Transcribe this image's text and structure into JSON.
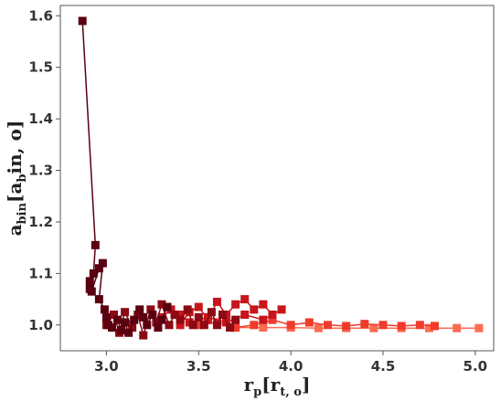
{
  "chart_data": {
    "type": "scatter",
    "title": "",
    "xlabel": {
      "main": "r",
      "sub": "p",
      "bracket_main": "r",
      "bracket_sub": "t, o"
    },
    "ylabel": {
      "main": "a",
      "sub": "bin",
      "bracket_main": "a",
      "bracket_sub": "b",
      "bracket_rest": "in, o"
    },
    "xlim": [
      2.75,
      5.1
    ],
    "ylim": [
      0.95,
      1.62
    ],
    "xticks": [
      3.0,
      3.5,
      4.0,
      4.5,
      5.0
    ],
    "xtick_labels": [
      "3.0",
      "3.5",
      "4.0",
      "4.5",
      "5.0"
    ],
    "yticks": [
      1.0,
      1.1,
      1.2,
      1.3,
      1.4,
      1.5,
      1.6
    ],
    "ytick_labels": [
      "1.0",
      "1.1",
      "1.2",
      "1.3",
      "1.4",
      "1.5",
      "1.6"
    ],
    "grid": false,
    "legend": false,
    "marker": "square",
    "color_scale": [
      "#5a0010",
      "#8b0a14",
      "#c8161c",
      "#ef3b2c",
      "#fc6c50"
    ],
    "series": [
      {
        "points": [
          [
            2.87,
            1.59
          ],
          [
            2.94,
            1.155
          ],
          [
            2.93,
            1.1
          ],
          [
            2.91,
            1.085
          ],
          [
            2.91,
            1.07
          ],
          [
            2.92,
            1.065
          ],
          [
            2.96,
            1.11
          ],
          [
            2.98,
            1.12
          ],
          [
            2.96,
            1.05
          ],
          [
            2.99,
            1.03
          ],
          [
            3.0,
            1.015
          ],
          [
            3.01,
            1.0
          ],
          [
            3.03,
            0.995
          ],
          [
            3.06,
            1.01
          ],
          [
            3.08,
            0.99
          ],
          [
            3.1,
            1.005
          ],
          [
            3.12,
            0.985
          ],
          [
            3.15,
            1.01
          ],
          [
            3.18,
            1.03
          ],
          [
            3.2,
            1.015
          ],
          [
            3.22,
            1.0
          ],
          [
            3.25,
            1.02
          ],
          [
            3.28,
            0.995
          ],
          [
            3.3,
            1.01
          ],
          [
            3.33,
            1.035
          ]
        ]
      },
      {
        "points": [
          [
            3.0,
            1.0
          ],
          [
            3.04,
            1.02
          ],
          [
            3.07,
            0.985
          ],
          [
            3.1,
            1.025
          ],
          [
            3.14,
            0.995
          ],
          [
            3.17,
            1.02
          ],
          [
            3.2,
            0.98
          ],
          [
            3.24,
            1.03
          ],
          [
            3.27,
            1.005
          ],
          [
            3.3,
            1.04
          ],
          [
            3.34,
            1.0
          ],
          [
            3.37,
            1.02
          ],
          [
            3.4,
            1.01
          ],
          [
            3.44,
            1.03
          ],
          [
            3.47,
            1.0
          ],
          [
            3.5,
            1.015
          ],
          [
            3.53,
            1.0
          ],
          [
            3.57,
            1.025
          ],
          [
            3.6,
            1.0
          ],
          [
            3.63,
            1.02
          ],
          [
            3.67,
            0.995
          ],
          [
            3.7,
            1.01
          ]
        ]
      },
      {
        "points": [
          [
            3.3,
            1.015
          ],
          [
            3.35,
            1.03
          ],
          [
            3.4,
            1.0
          ],
          [
            3.45,
            1.025
          ],
          [
            3.5,
            1.035
          ],
          [
            3.55,
            1.01
          ],
          [
            3.6,
            1.045
          ],
          [
            3.65,
            1.02
          ],
          [
            3.7,
            1.04
          ],
          [
            3.75,
            1.05
          ],
          [
            3.8,
            1.03
          ],
          [
            3.85,
            1.04
          ],
          [
            3.9,
            1.02
          ],
          [
            3.95,
            1.03
          ],
          [
            3.85,
            1.01
          ],
          [
            3.75,
            1.02
          ],
          [
            3.65,
            1.005
          ],
          [
            3.55,
            1.015
          ],
          [
            3.45,
            1.005
          ],
          [
            3.4,
            1.02
          ]
        ]
      },
      {
        "points": [
          [
            3.5,
            1.0
          ],
          [
            3.6,
            1.005
          ],
          [
            3.7,
            0.995
          ],
          [
            3.8,
            1.0
          ],
          [
            3.9,
            1.01
          ],
          [
            4.0,
            1.0
          ],
          [
            4.1,
            1.005
          ],
          [
            4.2,
            1.0
          ],
          [
            4.3,
            0.998
          ],
          [
            4.4,
            1.002
          ],
          [
            4.5,
            1.0
          ],
          [
            4.6,
            0.998
          ],
          [
            4.7,
            1.0
          ],
          [
            4.78,
            0.998
          ]
        ]
      },
      {
        "points": [
          [
            3.7,
            0.995
          ],
          [
            3.85,
            0.995
          ],
          [
            4.0,
            0.995
          ],
          [
            4.15,
            0.994
          ],
          [
            4.3,
            0.994
          ],
          [
            4.45,
            0.994
          ],
          [
            4.6,
            0.994
          ],
          [
            4.75,
            0.994
          ],
          [
            4.9,
            0.994
          ],
          [
            5.02,
            0.994
          ]
        ]
      }
    ]
  }
}
